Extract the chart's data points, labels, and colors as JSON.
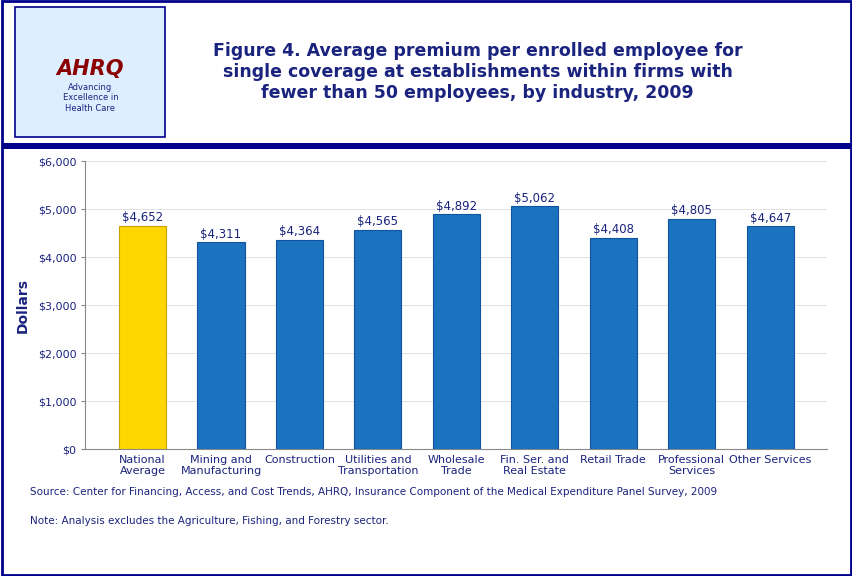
{
  "categories": [
    "National\nAverage",
    "Mining and\nManufacturing",
    "Construction",
    "Utilities and\nTransportation",
    "Wholesale\nTrade",
    "Fin. Ser. and\nReal Estate",
    "Retail Trade",
    "Professional\nServices",
    "Other Services"
  ],
  "values": [
    4652,
    4311,
    4364,
    4565,
    4892,
    5062,
    4408,
    4805,
    4647
  ],
  "labels": [
    "$4,652",
    "$4,311",
    "$4,364",
    "$4,565",
    "$4,892",
    "$5,062",
    "$4,408",
    "$4,805",
    "$4,647"
  ],
  "bar_colors": [
    "#FFD700",
    "#1B72BE",
    "#1B72BE",
    "#1B72BE",
    "#1B72BE",
    "#1B72BE",
    "#1B72BE",
    "#1B72BE",
    "#1B72BE"
  ],
  "bar_edge_colors": [
    "#C8A000",
    "#1055A0",
    "#1055A0",
    "#1055A0",
    "#1055A0",
    "#1055A0",
    "#1055A0",
    "#1055A0",
    "#1055A0"
  ],
  "title": "Figure 4. Average premium per enrolled employee for\nsingle coverage at establishments within firms with\nfewer than 50 employees, by industry, 2009",
  "ylabel": "Dollars",
  "ylim": [
    0,
    6000
  ],
  "yticks": [
    0,
    1000,
    2000,
    3000,
    4000,
    5000,
    6000
  ],
  "ytick_labels": [
    "$0",
    "$1,000",
    "$2,000",
    "$3,000",
    "$4,000",
    "$5,000",
    "$6,000"
  ],
  "source_text": "Source: Center for Financing, Access, and Cost Trends, AHRQ, Insurance Component of the Medical Expenditure Panel Survey, 2009",
  "note_text": "Note: Analysis excludes the Agriculture, Fishing, and Forestry sector.",
  "title_color": "#1A237E",
  "axis_label_color": "#1A237E",
  "tick_label_color": "#1A237E",
  "value_label_color": "#1A237E",
  "background_color": "#FFFFFF",
  "header_line_color": "#00008B",
  "outer_border_color": "#00008B",
  "title_fontsize": 12.5,
  "ylabel_fontsize": 10,
  "tick_fontsize": 8,
  "value_label_fontsize": 8.5,
  "source_fontsize": 7.5,
  "figure_bg": "#FFFFFF"
}
